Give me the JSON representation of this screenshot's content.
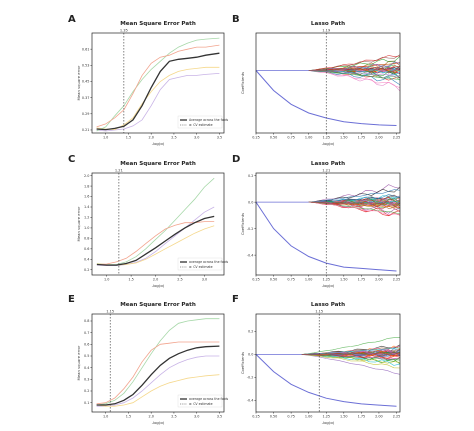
{
  "chart_data": [
    {
      "panel_letter": "A",
      "type": "line",
      "title": "Mean Square Error Path",
      "xlabel": "-log(α)",
      "ylabel": "Mean square error",
      "xlim": [
        0.7,
        3.6
      ],
      "ylim": [
        0.195,
        0.69
      ],
      "x_ticks": [
        1.0,
        1.5,
        2.0,
        2.5,
        3.0,
        3.5
      ],
      "y_ticks": [
        0.21,
        0.29,
        0.37,
        0.45,
        0.53,
        0.61
      ],
      "y_tick_labels": [
        "0.21",
        "0.29",
        "0.37",
        "0.45",
        "0.53",
        "0.61"
      ],
      "vline": {
        "x": 1.4,
        "label": "1.35"
      },
      "legend": {
        "placement": "lower-right",
        "entries": [
          "Average across the folds",
          "α: CV estimate"
        ]
      },
      "series": [
        {
          "name": "Average across the folds",
          "color": "#333333",
          "x": [
            0.8,
            1.0,
            1.2,
            1.4,
            1.6,
            1.8,
            2.0,
            2.2,
            2.4,
            2.6,
            2.8,
            3.0,
            3.2,
            3.5
          ],
          "y": [
            0.215,
            0.212,
            0.218,
            0.228,
            0.26,
            0.33,
            0.42,
            0.5,
            0.55,
            0.56,
            0.565,
            0.57,
            0.58,
            0.59
          ]
        },
        {
          "color": "#f2a48e",
          "x": [
            0.8,
            1.0,
            1.2,
            1.4,
            1.6,
            1.8,
            2.0,
            2.2,
            2.4,
            2.6,
            2.8,
            3.0,
            3.2,
            3.5
          ],
          "y": [
            0.225,
            0.24,
            0.27,
            0.31,
            0.39,
            0.48,
            0.54,
            0.57,
            0.58,
            0.6,
            0.61,
            0.62,
            0.62,
            0.63
          ]
        },
        {
          "color": "#a7d8a9",
          "x": [
            0.8,
            1.0,
            1.2,
            1.4,
            1.6,
            1.8,
            2.0,
            2.2,
            2.4,
            2.6,
            2.8,
            3.0,
            3.2,
            3.5
          ],
          "y": [
            0.205,
            0.225,
            0.28,
            0.33,
            0.4,
            0.46,
            0.51,
            0.55,
            0.59,
            0.62,
            0.64,
            0.655,
            0.66,
            0.665
          ]
        },
        {
          "color": "#f5d88c",
          "x": [
            0.8,
            1.0,
            1.2,
            1.4,
            1.6,
            1.8,
            2.0,
            2.2,
            2.4,
            2.6,
            2.8,
            3.0,
            3.2,
            3.5
          ],
          "y": [
            0.22,
            0.215,
            0.212,
            0.235,
            0.27,
            0.34,
            0.4,
            0.45,
            0.48,
            0.5,
            0.51,
            0.515,
            0.52,
            0.52
          ]
        },
        {
          "color": "#c8b3e6",
          "x": [
            0.8,
            1.0,
            1.2,
            1.4,
            1.6,
            1.8,
            2.0,
            2.2,
            2.4,
            2.6,
            2.8,
            3.0,
            3.2,
            3.5
          ],
          "y": [
            0.21,
            0.205,
            0.21,
            0.215,
            0.23,
            0.26,
            0.33,
            0.41,
            0.46,
            0.47,
            0.48,
            0.48,
            0.485,
            0.49
          ]
        }
      ]
    },
    {
      "panel_letter": "B",
      "type": "line",
      "title": "Lasso Path",
      "xlabel": "-log(α)",
      "ylabel": "Coefficients",
      "xlim": [
        0.25,
        2.3
      ],
      "ylim": [
        -0.5,
        0.3
      ],
      "x_ticks": [
        0.25,
        0.5,
        0.75,
        1.0,
        1.25,
        1.5,
        1.75,
        2.0,
        2.25
      ],
      "x_tick_labels": [
        "0.25",
        "0.50",
        "0.75",
        "1.00",
        "1.25",
        "1.50",
        "1.75",
        "2.00",
        "2.25"
      ],
      "vline": {
        "x": 1.25,
        "label": "1.19"
      },
      "bundle": {
        "count": 44,
        "x_start": 1.0,
        "amplitude": 0.17
      },
      "decay_series": {
        "color": "#6b6fd6",
        "x": [
          0.25,
          0.5,
          0.75,
          1.0,
          1.25,
          1.5,
          1.75,
          2.0,
          2.25
        ],
        "y": [
          0.0,
          -0.16,
          -0.27,
          -0.34,
          -0.38,
          -0.41,
          -0.425,
          -0.435,
          -0.44
        ]
      }
    },
    {
      "panel_letter": "C",
      "type": "line",
      "title": "Mean Square Error Path",
      "xlabel": "-log(α)",
      "ylabel": "Mean square error",
      "xlim": [
        0.7,
        3.4
      ],
      "ylim": [
        0.1,
        2.05
      ],
      "x_ticks": [
        1.0,
        1.5,
        2.0,
        2.5,
        3.0
      ],
      "y_ticks": [
        0.2,
        0.4,
        0.6,
        0.8,
        1.0,
        1.2,
        1.4,
        1.6,
        1.8,
        2.0
      ],
      "y_tick_labels": [
        "0.2",
        "0.4",
        "0.6",
        "0.8",
        "1.0",
        "1.2",
        "1.4",
        "1.6",
        "1.8",
        "2.0"
      ],
      "vline": {
        "x": 1.25,
        "label": "1.21"
      },
      "legend": {
        "placement": "lower-right",
        "entries": [
          "average across the folds",
          "α: CV estimate"
        ]
      },
      "series": [
        {
          "name": "average across the folds",
          "color": "#333333",
          "x": [
            0.8,
            1.0,
            1.2,
            1.4,
            1.6,
            1.8,
            2.0,
            2.2,
            2.4,
            2.6,
            2.8,
            3.0,
            3.2
          ],
          "y": [
            0.3,
            0.29,
            0.29,
            0.32,
            0.38,
            0.5,
            0.62,
            0.75,
            0.88,
            1.0,
            1.1,
            1.18,
            1.22
          ]
        },
        {
          "color": "#f2a48e",
          "x": [
            0.8,
            1.0,
            1.2,
            1.4,
            1.6,
            1.8,
            2.0,
            2.2,
            2.4,
            2.6,
            2.8,
            3.0,
            3.2
          ],
          "y": [
            0.3,
            0.31,
            0.35,
            0.42,
            0.55,
            0.7,
            0.85,
            0.98,
            1.05,
            1.1,
            1.1,
            1.12,
            1.12
          ]
        },
        {
          "color": "#a7d8a9",
          "x": [
            0.8,
            1.0,
            1.2,
            1.4,
            1.6,
            1.8,
            2.0,
            2.2,
            2.4,
            2.6,
            2.8,
            3.0,
            3.2
          ],
          "y": [
            0.31,
            0.3,
            0.3,
            0.35,
            0.45,
            0.6,
            0.78,
            0.95,
            1.15,
            1.35,
            1.55,
            1.78,
            1.95
          ]
        },
        {
          "color": "#f5d88c",
          "x": [
            0.8,
            1.0,
            1.2,
            1.4,
            1.6,
            1.8,
            2.0,
            2.2,
            2.4,
            2.6,
            2.8,
            3.0,
            3.2
          ],
          "y": [
            0.32,
            0.3,
            0.29,
            0.3,
            0.33,
            0.4,
            0.5,
            0.6,
            0.7,
            0.8,
            0.9,
            0.98,
            1.04
          ]
        },
        {
          "color": "#c8b3e6",
          "x": [
            0.8,
            1.0,
            1.2,
            1.4,
            1.6,
            1.8,
            2.0,
            2.2,
            2.4,
            2.6,
            2.8,
            3.0,
            3.2
          ],
          "y": [
            0.29,
            0.28,
            0.28,
            0.3,
            0.34,
            0.42,
            0.55,
            0.7,
            0.85,
            1.0,
            1.15,
            1.3,
            1.4
          ]
        }
      ]
    },
    {
      "panel_letter": "D",
      "type": "line",
      "title": "Lasso Path",
      "xlabel": "-log(α)",
      "ylabel": "Coefficients",
      "xlim": [
        0.25,
        2.3
      ],
      "ylim": [
        -0.55,
        0.22
      ],
      "x_ticks": [
        0.25,
        0.5,
        0.75,
        1.0,
        1.25,
        1.5,
        1.75,
        2.0,
        2.25
      ],
      "x_tick_labels": [
        "0.25",
        "0.50",
        "0.75",
        "1.00",
        "1.25",
        "1.50",
        "1.75",
        "2.00",
        "2.25"
      ],
      "y_ticks": [
        0.2,
        0.0,
        -0.2,
        -0.4
      ],
      "y_tick_labels": [
        "0.2",
        "0.0",
        "-0.2",
        "-0.4"
      ],
      "vline": {
        "x": 1.25,
        "label": "1.21"
      },
      "bundle": {
        "count": 44,
        "x_start": 1.0,
        "amplitude": 0.14
      },
      "decay_series": {
        "color": "#6b6fd6",
        "x": [
          0.25,
          0.5,
          0.75,
          1.0,
          1.25,
          1.5,
          1.75,
          2.0,
          2.25
        ],
        "y": [
          0.0,
          -0.2,
          -0.33,
          -0.41,
          -0.46,
          -0.49,
          -0.5,
          -0.51,
          -0.52
        ]
      }
    },
    {
      "panel_letter": "E",
      "type": "line",
      "title": "Mean Square Error Path",
      "xlabel": "-log(α)",
      "ylabel": "Mean square error",
      "xlim": [
        0.7,
        3.6
      ],
      "ylim": [
        0.02,
        0.86
      ],
      "x_ticks": [
        1.0,
        1.5,
        2.0,
        2.5,
        3.0,
        3.5
      ],
      "y_ticks": [
        0.1,
        0.2,
        0.3,
        0.4,
        0.5,
        0.6,
        0.7,
        0.8
      ],
      "y_tick_labels": [
        "0.1",
        "0.2",
        "0.3",
        "0.4",
        "0.5",
        "0.6",
        "0.7",
        "0.8"
      ],
      "vline": {
        "x": 1.1,
        "label": "1.15"
      },
      "legend": {
        "placement": "lower-right",
        "entries": [
          "average across the folds",
          "α: CV estimate"
        ]
      },
      "series": [
        {
          "name": "average across the folds",
          "color": "#333333",
          "x": [
            0.8,
            1.0,
            1.2,
            1.4,
            1.6,
            1.8,
            2.0,
            2.2,
            2.4,
            2.6,
            2.8,
            3.0,
            3.2,
            3.5
          ],
          "y": [
            0.08,
            0.08,
            0.09,
            0.12,
            0.17,
            0.25,
            0.34,
            0.42,
            0.48,
            0.52,
            0.55,
            0.57,
            0.58,
            0.585
          ]
        },
        {
          "color": "#f2a48e",
          "x": [
            0.8,
            1.0,
            1.2,
            1.4,
            1.6,
            1.8,
            2.0,
            2.2,
            2.4,
            2.6,
            2.8,
            3.0,
            3.2,
            3.5
          ],
          "y": [
            0.09,
            0.1,
            0.14,
            0.22,
            0.32,
            0.45,
            0.55,
            0.6,
            0.61,
            0.62,
            0.62,
            0.62,
            0.62,
            0.62
          ]
        },
        {
          "color": "#a7d8a9",
          "x": [
            0.8,
            1.0,
            1.2,
            1.4,
            1.6,
            1.8,
            2.0,
            2.2,
            2.4,
            2.6,
            2.8,
            3.0,
            3.2,
            3.5
          ],
          "y": [
            0.08,
            0.09,
            0.12,
            0.18,
            0.28,
            0.4,
            0.52,
            0.63,
            0.72,
            0.78,
            0.8,
            0.81,
            0.82,
            0.82
          ]
        },
        {
          "color": "#f5d88c",
          "x": [
            0.8,
            1.0,
            1.2,
            1.4,
            1.6,
            1.8,
            2.0,
            2.2,
            2.4,
            2.6,
            2.8,
            3.0,
            3.2,
            3.5
          ],
          "y": [
            0.08,
            0.07,
            0.07,
            0.08,
            0.1,
            0.15,
            0.2,
            0.24,
            0.27,
            0.29,
            0.31,
            0.32,
            0.33,
            0.34
          ]
        },
        {
          "color": "#c8b3e6",
          "x": [
            0.8,
            1.0,
            1.2,
            1.4,
            1.6,
            1.8,
            2.0,
            2.2,
            2.4,
            2.6,
            2.8,
            3.0,
            3.2,
            3.5
          ],
          "y": [
            0.07,
            0.07,
            0.08,
            0.1,
            0.14,
            0.2,
            0.27,
            0.34,
            0.4,
            0.44,
            0.47,
            0.49,
            0.5,
            0.5
          ]
        }
      ]
    },
    {
      "panel_letter": "F",
      "type": "line",
      "title": "Lasso Path",
      "xlabel": "-log(α)",
      "ylabel": "Coefficients",
      "xlim": [
        0.25,
        2.3
      ],
      "ylim": [
        -0.5,
        0.35
      ],
      "x_ticks": [
        0.25,
        0.5,
        0.75,
        1.0,
        1.25,
        1.5,
        1.75,
        2.0,
        2.25
      ],
      "x_tick_labels": [
        "0.25",
        "0.50",
        "0.75",
        "1.00",
        "1.25",
        "1.50",
        "1.75",
        "2.00",
        "2.25"
      ],
      "y_ticks": [
        0.2,
        0.0,
        -0.2,
        -0.4
      ],
      "y_tick_labels": [
        "0.2",
        "0.0",
        "-0.2",
        "-0.4"
      ],
      "vline": {
        "x": 1.15,
        "label": "1.15"
      },
      "bundle": {
        "count": 44,
        "x_start": 0.9,
        "amplitude": 0.2
      },
      "decay_series": {
        "color": "#6b6fd6",
        "x": [
          0.25,
          0.5,
          0.75,
          1.0,
          1.25,
          1.5,
          1.75,
          2.0,
          2.25
        ],
        "y": [
          0.0,
          -0.15,
          -0.26,
          -0.33,
          -0.38,
          -0.41,
          -0.43,
          -0.44,
          -0.45
        ]
      }
    }
  ]
}
